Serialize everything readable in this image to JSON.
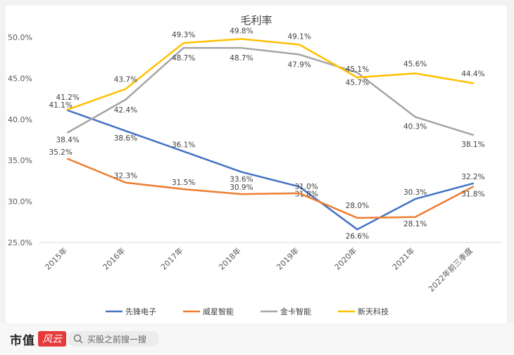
{
  "chart_data": {
    "type": "line",
    "title": "毛利率",
    "categories": [
      "2015年",
      "2016年",
      "2017年",
      "2018年",
      "2019年",
      "2020年",
      "2021年",
      "2022年前三季度"
    ],
    "y_ticks": [
      "25.0%",
      "30.0%",
      "35.0%",
      "40.0%",
      "45.0%",
      "50.0%"
    ],
    "ylim": [
      25,
      50
    ],
    "series": [
      {
        "name": "先锋电子",
        "color": "#4472c4",
        "values": [
          41.1,
          38.6,
          36.1,
          33.6,
          31.8,
          26.6,
          30.3,
          32.2
        ],
        "labels": [
          "41.1%",
          "38.6%",
          "36.1%",
          "33.6%",
          "31.8%",
          "26.6%",
          "30.3%",
          "32.2%"
        ]
      },
      {
        "name": "威星智能",
        "color": "#ed7d31",
        "values": [
          35.2,
          32.3,
          31.5,
          30.9,
          31.0,
          28.0,
          28.1,
          31.8
        ],
        "labels": [
          "35.2%",
          "32.3%",
          "31.5%",
          "30.9%",
          "31.0%",
          "28.0%",
          "28.1%",
          "31.8%"
        ]
      },
      {
        "name": "金卡智能",
        "color": "#a5a5a5",
        "values": [
          38.4,
          42.4,
          48.7,
          48.7,
          47.9,
          45.7,
          40.3,
          38.1
        ],
        "labels": [
          "38.4%",
          "42.4%",
          "48.7%",
          "48.7%",
          "47.9%",
          "45.7%",
          "40.3%",
          "38.1%"
        ]
      },
      {
        "name": "新天科技",
        "color": "#ffc000",
        "values": [
          41.2,
          43.7,
          49.3,
          49.8,
          49.1,
          45.1,
          45.6,
          44.4
        ],
        "labels": [
          "41.2%",
          "43.7%",
          "49.3%",
          "49.8%",
          "49.1%",
          "45.1%",
          "45.6%",
          "44.4%"
        ]
      }
    ],
    "grid": false,
    "legend": "bottom"
  },
  "footer": {
    "brand": "市值",
    "brand_badge": "风云",
    "search_placeholder": "买股之前搜一搜"
  }
}
